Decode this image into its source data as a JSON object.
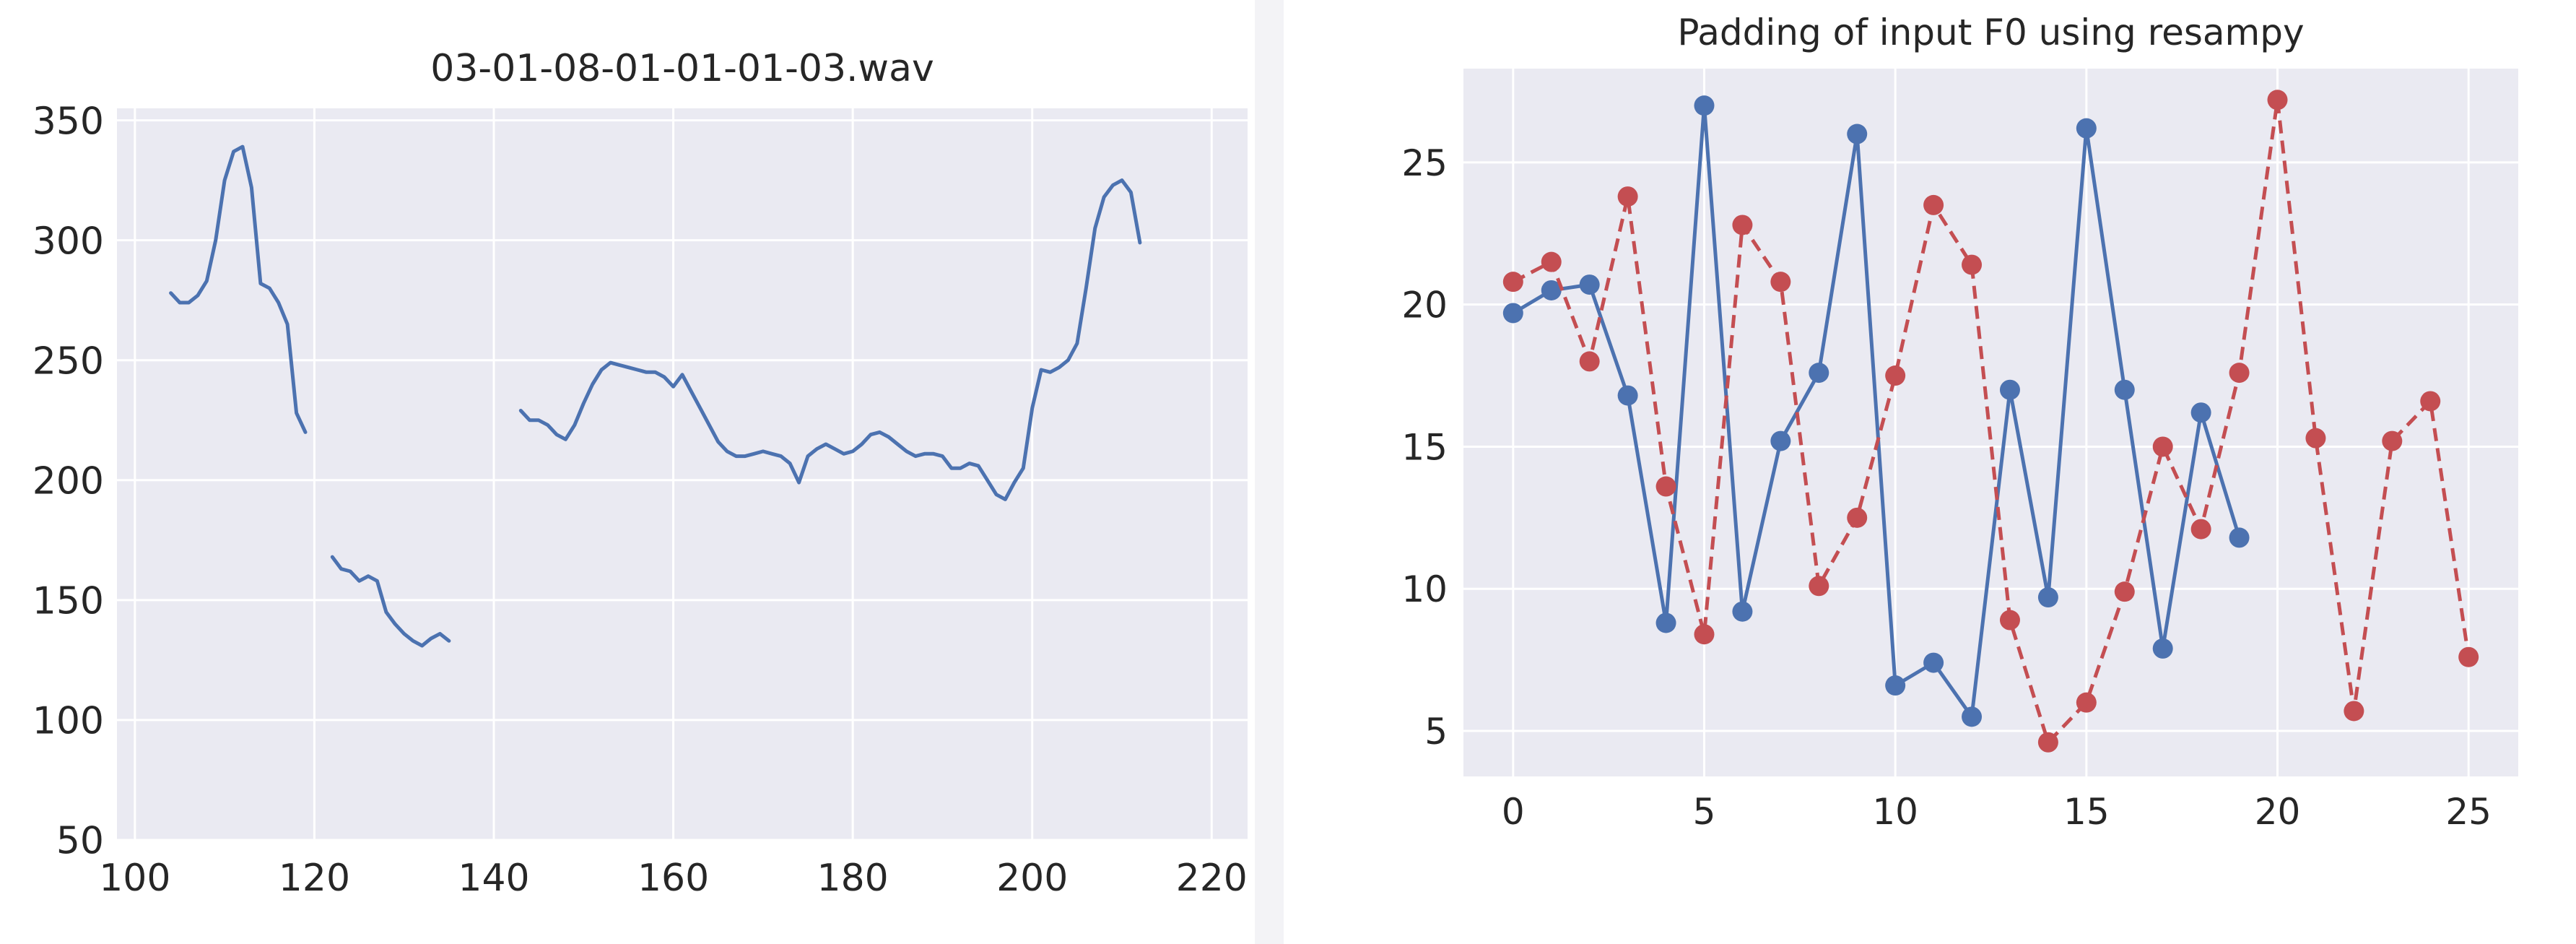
{
  "colors": {
    "panel_bg": "#eaeaf2",
    "grid": "#ffffff",
    "text": "#262626",
    "blue": "#4c72b0",
    "red": "#c44e52"
  },
  "chart_data": [
    {
      "type": "line",
      "title": "03-01-08-01-01-01-03.wav",
      "xlabel": "",
      "ylabel": "",
      "xlim": [
        98,
        224
      ],
      "ylim": [
        50,
        355
      ],
      "xticks": [
        100,
        120,
        140,
        160,
        180,
        200,
        220
      ],
      "yticks": [
        50,
        100,
        150,
        200,
        250,
        300,
        350
      ],
      "grid": true,
      "series": [
        {
          "color": "#4c72b0",
          "style": "solid",
          "segments": [
            [
              [
                104,
                278
              ],
              [
                105,
                274
              ],
              [
                106,
                274
              ],
              [
                107,
                277
              ],
              [
                108,
                283
              ],
              [
                109,
                300
              ],
              [
                110,
                325
              ],
              [
                111,
                337
              ],
              [
                112,
                339
              ],
              [
                113,
                322
              ],
              [
                114,
                282
              ],
              [
                115,
                280
              ],
              [
                116,
                274
              ],
              [
                117,
                265
              ],
              [
                118,
                228
              ],
              [
                119,
                220
              ]
            ],
            [
              [
                122,
                168
              ],
              [
                123,
                163
              ],
              [
                124,
                162
              ],
              [
                125,
                158
              ],
              [
                126,
                160
              ],
              [
                127,
                158
              ],
              [
                128,
                145
              ],
              [
                129,
                140
              ],
              [
                130,
                136
              ],
              [
                131,
                133
              ],
              [
                132,
                131
              ],
              [
                133,
                134
              ],
              [
                134,
                136
              ],
              [
                135,
                133
              ]
            ],
            [
              [
                143,
                229
              ],
              [
                144,
                225
              ],
              [
                145,
                225
              ],
              [
                146,
                223
              ],
              [
                147,
                219
              ],
              [
                148,
                217
              ],
              [
                149,
                223
              ],
              [
                150,
                232
              ],
              [
                151,
                240
              ],
              [
                152,
                246
              ],
              [
                153,
                249
              ],
              [
                154,
                248
              ],
              [
                155,
                247
              ],
              [
                156,
                246
              ],
              [
                157,
                245
              ],
              [
                158,
                245
              ],
              [
                159,
                243
              ],
              [
                160,
                239
              ],
              [
                161,
                244
              ],
              [
                162,
                237
              ],
              [
                163,
                230
              ],
              [
                164,
                223
              ],
              [
                165,
                216
              ],
              [
                166,
                212
              ],
              [
                167,
                210
              ],
              [
                168,
                210
              ],
              [
                169,
                211
              ],
              [
                170,
                212
              ],
              [
                171,
                211
              ],
              [
                172,
                210
              ],
              [
                173,
                207
              ],
              [
                174,
                199
              ],
              [
                175,
                210
              ],
              [
                176,
                213
              ],
              [
                177,
                215
              ],
              [
                178,
                213
              ],
              [
                179,
                211
              ],
              [
                180,
                212
              ],
              [
                181,
                215
              ],
              [
                182,
                219
              ],
              [
                183,
                220
              ],
              [
                184,
                218
              ],
              [
                185,
                215
              ],
              [
                186,
                212
              ],
              [
                187,
                210
              ],
              [
                188,
                211
              ],
              [
                189,
                211
              ],
              [
                190,
                210
              ],
              [
                191,
                205
              ],
              [
                192,
                205
              ],
              [
                193,
                207
              ],
              [
                194,
                206
              ],
              [
                195,
                200
              ],
              [
                196,
                194
              ],
              [
                197,
                192
              ],
              [
                198,
                199
              ],
              [
                199,
                205
              ],
              [
                200,
                230
              ],
              [
                201,
                246
              ],
              [
                202,
                245
              ],
              [
                203,
                247
              ],
              [
                204,
                250
              ],
              [
                205,
                257
              ],
              [
                206,
                280
              ],
              [
                207,
                305
              ],
              [
                208,
                318
              ],
              [
                209,
                323
              ],
              [
                210,
                325
              ],
              [
                211,
                320
              ],
              [
                212,
                299
              ]
            ]
          ]
        }
      ]
    },
    {
      "type": "line",
      "title": "Padding of input F0 using resampy",
      "xlabel": "",
      "ylabel": "",
      "xlim": [
        -1.3,
        26.3
      ],
      "ylim": [
        3.4,
        28.3
      ],
      "xticks": [
        0,
        5,
        10,
        15,
        20,
        25
      ],
      "yticks": [
        5,
        10,
        15,
        20,
        25
      ],
      "grid": true,
      "series": [
        {
          "color": "#4c72b0",
          "style": "solid",
          "marker": "o",
          "x": [
            0,
            1,
            2,
            3,
            4,
            5,
            6,
            7,
            8,
            9,
            10,
            11,
            12,
            13,
            14,
            15,
            16,
            17,
            18,
            19
          ],
          "y": [
            19.7,
            20.5,
            20.7,
            16.8,
            8.8,
            27.0,
            9.2,
            15.2,
            17.6,
            26.0,
            6.6,
            7.4,
            5.5,
            17.0,
            9.7,
            26.2,
            17.0,
            7.9,
            16.2,
            11.8
          ]
        },
        {
          "color": "#c44e52",
          "style": "dashed",
          "marker": "o",
          "x": [
            0,
            1,
            2,
            3,
            4,
            5,
            6,
            7,
            8,
            9,
            10,
            11,
            12,
            13,
            14,
            15,
            16,
            17,
            18,
            19,
            20,
            21,
            22,
            23,
            24,
            25
          ],
          "y": [
            20.8,
            21.5,
            18.0,
            23.8,
            13.6,
            8.4,
            22.8,
            20.8,
            10.1,
            12.5,
            17.5,
            23.5,
            21.4,
            8.9,
            4.6,
            6.0,
            9.9,
            15.0,
            12.1,
            17.6,
            27.2,
            15.3,
            5.7,
            15.2,
            16.6,
            7.6
          ]
        }
      ]
    }
  ]
}
